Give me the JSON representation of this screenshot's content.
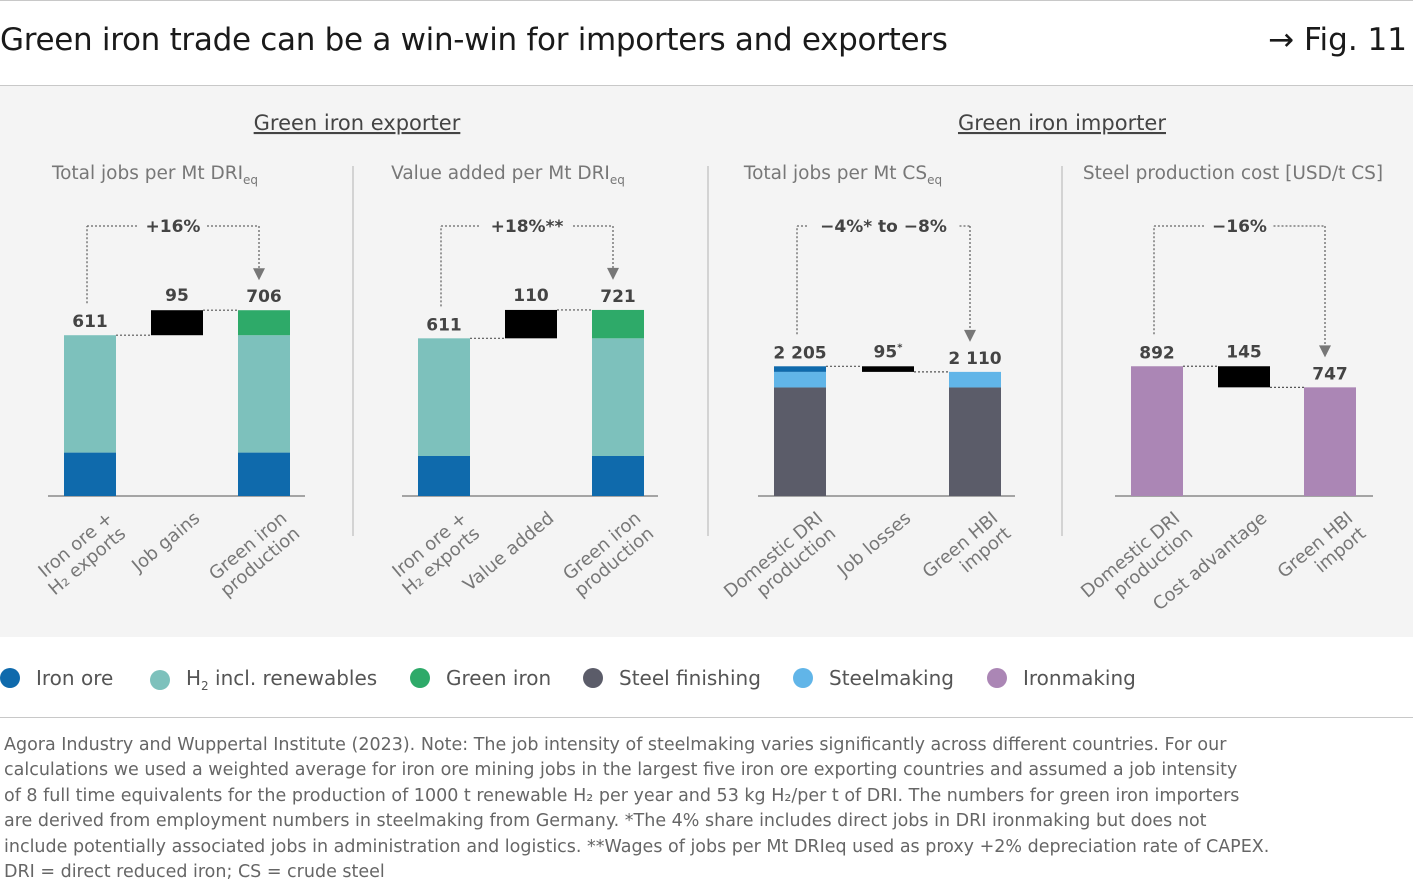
{
  "header": {
    "title": "Green iron trade can be a win-win for importers and exporters",
    "fig_label": "→ Fig. 11"
  },
  "groups": {
    "exporter": "Green iron exporter",
    "importer": "Green iron importer"
  },
  "colors": {
    "iron_ore": "#0f6aac",
    "h2": "#7dc1bc",
    "green_iron": "#2eaa69",
    "steel_finishing": "#5b5c69",
    "steelmaking": "#61b5e8",
    "ironmaking": "#ab86b5",
    "delta": "#000000"
  },
  "chart_data": [
    {
      "type": "bar",
      "subtype": "waterfall",
      "title": "Total jobs per Mt DRI",
      "title_sub": "eq",
      "categories": [
        [
          "Iron ore +",
          "H₂ exports"
        ],
        [
          "Job gains"
        ],
        [
          "Green iron",
          "production"
        ]
      ],
      "totals": [
        "611",
        "95",
        "706"
      ],
      "change_label": "+16%",
      "series": [
        {
          "name": "Iron ore",
          "color_key": "iron_ore",
          "values": [
            165,
            0,
            165
          ]
        },
        {
          "name": "H₂ incl. renewables",
          "color_key": "h2",
          "values": [
            446,
            0,
            446
          ]
        },
        {
          "name": "Green iron",
          "color_key": "green_iron",
          "values": [
            0,
            0,
            95
          ]
        }
      ],
      "delta": {
        "index": 1,
        "from": 611,
        "to": 706
      },
      "ylim": [
        0,
        760
      ]
    },
    {
      "type": "bar",
      "subtype": "waterfall",
      "title": "Value added per Mt DRI",
      "title_sub": "eq",
      "categories": [
        [
          "Iron ore +",
          "H₂ exports"
        ],
        [
          "Value added"
        ],
        [
          "Green iron",
          "production"
        ]
      ],
      "totals": [
        "611",
        "110",
        "721"
      ],
      "change_label": "+18%**",
      "series": [
        {
          "name": "Iron ore",
          "color_key": "iron_ore",
          "values": [
            155,
            0,
            155
          ]
        },
        {
          "name": "H₂ incl. renewables",
          "color_key": "h2",
          "values": [
            456,
            0,
            456
          ]
        },
        {
          "name": "Green iron",
          "color_key": "green_iron",
          "values": [
            0,
            0,
            110
          ]
        }
      ],
      "delta": {
        "index": 1,
        "from": 611,
        "to": 721
      },
      "ylim": [
        0,
        775
      ]
    },
    {
      "type": "bar",
      "subtype": "waterfall",
      "title": "Total jobs per Mt CS",
      "title_sub": "eq",
      "categories": [
        [
          "Domestic DRI",
          "production"
        ],
        [
          "Job losses"
        ],
        [
          "Green HBI",
          "import"
        ]
      ],
      "totals": [
        "2 205",
        "95",
        "2 110"
      ],
      "total_notes": [
        "",
        "*",
        ""
      ],
      "change_label": "−4%* to −8%",
      "series": [
        {
          "name": "Steel finishing",
          "color_key": "steel_finishing",
          "values": [
            1845,
            0,
            1845
          ]
        },
        {
          "name": "Steelmaking",
          "color_key": "steelmaking",
          "values": [
            265,
            0,
            265
          ]
        },
        {
          "name": "Iron ore",
          "color_key": "iron_ore",
          "values": [
            95,
            0,
            0
          ]
        }
      ],
      "delta": {
        "index": 1,
        "from": 2205,
        "to": 2110
      },
      "ylim": [
        0,
        3400
      ]
    },
    {
      "type": "bar",
      "subtype": "waterfall",
      "title": "Steel production cost [USD/t CS]",
      "title_sub": "",
      "categories": [
        [
          "Domestic DRI",
          "production"
        ],
        [
          "Cost advantage"
        ],
        [
          "Green HBI",
          "import"
        ]
      ],
      "totals": [
        "892",
        "145",
        "747"
      ],
      "change_label": "−16%",
      "series": [
        {
          "name": "Ironmaking",
          "color_key": "ironmaking",
          "values": [
            892,
            0,
            747
          ]
        }
      ],
      "delta": {
        "index": 1,
        "from": 892,
        "to": 747
      },
      "ylim": [
        0,
        1375
      ]
    }
  ],
  "legend": [
    {
      "label": "Iron ore",
      "sub": "",
      "color_key": "iron_ore"
    },
    {
      "label": "H",
      "sub": "2",
      "rest": " incl. renewables",
      "color_key": "h2"
    },
    {
      "label": "Green iron",
      "sub": "",
      "color_key": "green_iron"
    },
    {
      "label": "Steel finishing",
      "sub": "",
      "color_key": "steel_finishing"
    },
    {
      "label": "Steelmaking",
      "sub": "",
      "color_key": "steelmaking"
    },
    {
      "label": "Ironmaking",
      "sub": "",
      "color_key": "ironmaking"
    }
  ],
  "notes": [
    "Agora Industry and Wuppertal Institute (2023). Note: The job intensity of steelmaking varies significantly across different countries. For our",
    "calculations we used a weighted average for iron ore mining jobs in the largest five iron ore exporting countries and assumed a job intensity",
    "of 8 full time equivalents for the production of 1000 t renewable H₂ per year and 53 kg H₂/per t of DRI. The numbers for green iron importers",
    "are derived from employment numbers in steelmaking from Germany. *The 4% share includes direct jobs in DRI ironmaking but does not",
    "include potentially associated jobs in administration and logistics. **Wages of jobs per Mt DRIeq used as proxy +2% depreciation rate of CAPEX.",
    "DRI = direct reduced iron; CS = crude steel"
  ]
}
